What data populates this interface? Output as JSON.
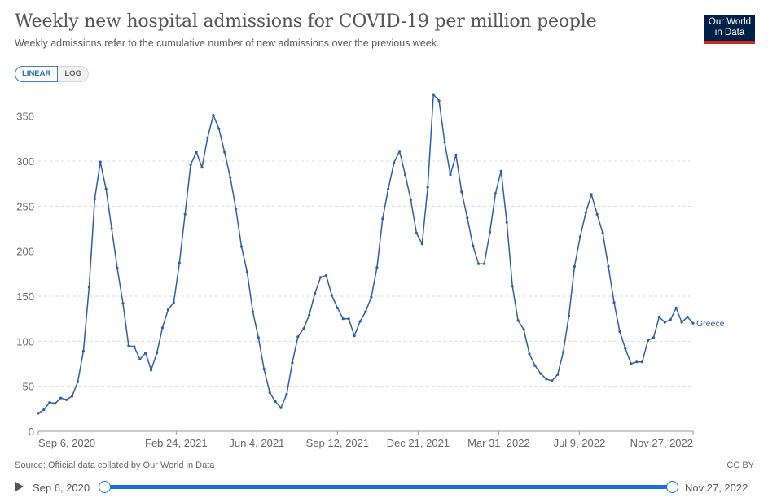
{
  "header": {
    "title": "Weekly new hospital admissions for COVID-19 per million people",
    "subtitle": "Weekly admissions refer to the cumulative number of new admissions over the previous week.",
    "logo_line1": "Our World",
    "logo_line2": "in Data"
  },
  "scale_toggle": {
    "linear_label": "LINEAR",
    "log_label": "LOG",
    "selected": "LINEAR"
  },
  "footer": {
    "source": "Source: Official data collated by Our World in Data",
    "license": "CC BY"
  },
  "timeline": {
    "start_label": "Sep 6, 2020",
    "end_label": "Nov 27, 2022"
  },
  "colors": {
    "series": "#2b5fa8",
    "accent": "#1a6fe0",
    "logo_bg": "#002147",
    "logo_stripe": "#ce261e"
  },
  "chart_data": {
    "type": "line",
    "title": "Weekly new hospital admissions for COVID-19 per million people",
    "xlabel": "",
    "ylabel": "",
    "ylim": [
      0,
      375
    ],
    "yticks": [
      0,
      50,
      100,
      150,
      200,
      250,
      300,
      350
    ],
    "grid": true,
    "x_start": "2020-09-06",
    "x_end": "2022-11-27",
    "x_interval_days": 7,
    "xtick_labels": [
      "Sep 6, 2020",
      "Feb 24, 2021",
      "Jun 4, 2021",
      "Sep 12, 2021",
      "Dec 21, 2021",
      "Mar 31, 2022",
      "Jul 9, 2022",
      "Nov 27, 2022"
    ],
    "xtick_dates": [
      "2020-09-06",
      "2021-02-24",
      "2021-06-04",
      "2021-09-12",
      "2021-12-21",
      "2022-03-31",
      "2022-07-09",
      "2022-11-27"
    ],
    "series": [
      {
        "name": "Greece",
        "values": [
          20,
          24,
          32,
          31,
          37,
          35,
          39,
          55,
          89,
          160,
          258,
          299,
          269,
          225,
          181,
          142,
          95,
          94,
          80,
          87,
          68,
          87,
          115,
          135,
          143,
          187,
          241,
          296,
          310,
          293,
          326,
          351,
          336,
          310,
          282,
          247,
          205,
          177,
          133,
          104,
          69,
          43,
          33,
          26,
          41,
          76,
          105,
          114,
          129,
          153,
          171,
          173,
          151,
          137,
          125,
          125,
          106,
          122,
          133,
          149,
          182,
          236,
          269,
          298,
          311,
          285,
          257,
          220,
          208,
          271,
          374,
          367,
          321,
          285,
          307,
          266,
          237,
          206,
          186,
          186,
          221,
          264,
          289,
          232,
          161,
          123,
          113,
          86,
          73,
          64,
          58,
          56,
          63,
          88,
          128,
          183,
          216,
          243,
          263,
          241,
          220,
          183,
          143,
          111,
          92,
          75,
          77,
          77,
          101,
          104,
          127,
          121,
          124,
          137,
          121,
          127,
          120
        ]
      }
    ]
  }
}
